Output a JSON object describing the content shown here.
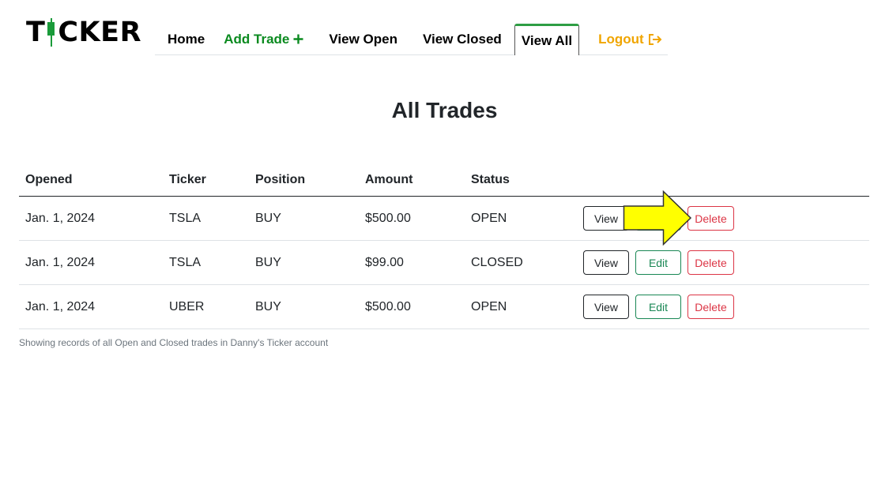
{
  "logo": {
    "text_left": "T",
    "text_right": "CKER"
  },
  "nav": {
    "home": "Home",
    "add_trade": "Add Trade",
    "view_open": "View Open",
    "view_closed": "View Closed",
    "view_all": "View All",
    "logout": "Logout",
    "active_tab": "View All"
  },
  "page": {
    "title": "All Trades"
  },
  "table": {
    "headers": [
      "Opened",
      "Ticker",
      "Position",
      "Amount",
      "Status"
    ],
    "rows": [
      {
        "opened": "Jan. 1, 2024",
        "ticker": "TSLA",
        "position": "BUY",
        "amount": "$500.00",
        "status": "OPEN"
      },
      {
        "opened": "Jan. 1, 2024",
        "ticker": "TSLA",
        "position": "BUY",
        "amount": "$99.00",
        "status": "CLOSED"
      },
      {
        "opened": "Jan. 1, 2024",
        "ticker": "UBER",
        "position": "BUY",
        "amount": "$500.00",
        "status": "OPEN"
      }
    ],
    "actions": {
      "view": "View",
      "edit": "Edit",
      "delete": "Delete"
    }
  },
  "caption": "Showing records of all Open and Closed trades in Danny's Ticker account",
  "colors": {
    "brand_green": "#1a9b3a",
    "add_trade_green": "#0a8a1f",
    "logout_orange": "#f0a500",
    "edit_green": "#198754",
    "delete_red": "#dc3545",
    "annotation_arrow": "#ffff00"
  },
  "icons": {
    "add_trade": "plus-icon",
    "logout": "logout-icon",
    "annotation": "arrow-right-icon"
  }
}
